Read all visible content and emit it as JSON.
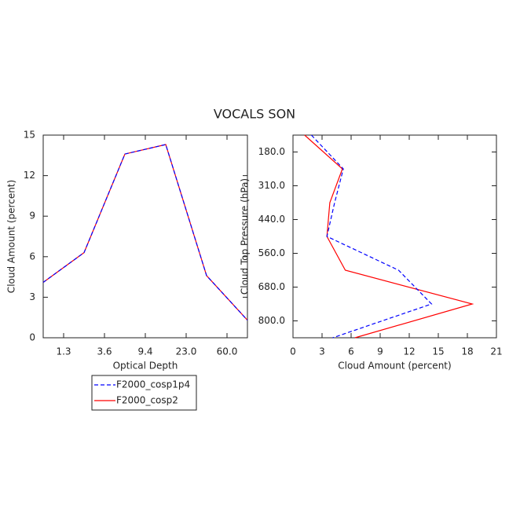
{
  "title": "VOCALS SON",
  "chart_data": [
    {
      "type": "line",
      "xlabel": "Optical Depth",
      "ylabel": "Cloud Amount (percent)",
      "x": [
        0,
        1,
        2,
        3,
        4,
        5
      ],
      "xlim": [
        0,
        5
      ],
      "xticks": [
        {
          "value": 0.5,
          "label": "1.3"
        },
        {
          "value": 1.5,
          "label": "3.6"
        },
        {
          "value": 2.5,
          "label": "9.4"
        },
        {
          "value": 3.5,
          "label": "23.0"
        },
        {
          "value": 4.5,
          "label": "60.0"
        }
      ],
      "ylim": [
        0,
        15
      ],
      "yticks": [
        0,
        3,
        6,
        9,
        12,
        15
      ],
      "series": [
        {
          "name": "F2000_cosp1p4",
          "color": "#0000ff",
          "dashed": true,
          "values": [
            4.1,
            6.3,
            13.6,
            14.3,
            4.6,
            1.3
          ]
        },
        {
          "name": "F2000_cosp2",
          "color": "#ff0000",
          "dashed": false,
          "values": [
            4.1,
            6.3,
            13.6,
            14.3,
            4.6,
            1.3
          ]
        }
      ]
    },
    {
      "type": "line",
      "orientation": "horizontal",
      "xlabel": "Cloud Amount (percent)",
      "ylabel": "Cloud Top Pressure (hPa)",
      "y": [
        0,
        1,
        2,
        3,
        4,
        5,
        6
      ],
      "ylim": [
        6,
        0
      ],
      "yticks": [
        {
          "value": 0.5,
          "label": "180.0"
        },
        {
          "value": 1.5,
          "label": "310.0"
        },
        {
          "value": 2.5,
          "label": "440.0"
        },
        {
          "value": 3.5,
          "label": "560.0"
        },
        {
          "value": 4.5,
          "label": "680.0"
        },
        {
          "value": 5.5,
          "label": "800.0"
        }
      ],
      "xlim": [
        0,
        21
      ],
      "xticks": [
        0,
        3,
        6,
        9,
        12,
        15,
        18,
        21
      ],
      "series": [
        {
          "name": "F2000_cosp1p4",
          "color": "#0000ff",
          "dashed": true,
          "values": [
            1.9,
            5.2,
            4.3,
            3.5,
            10.9,
            14.3,
            4.1
          ]
        },
        {
          "name": "F2000_cosp2",
          "color": "#ff0000",
          "dashed": false,
          "values": [
            1.2,
            5.1,
            3.8,
            3.5,
            5.4,
            18.5,
            6.4
          ]
        }
      ]
    }
  ]
}
